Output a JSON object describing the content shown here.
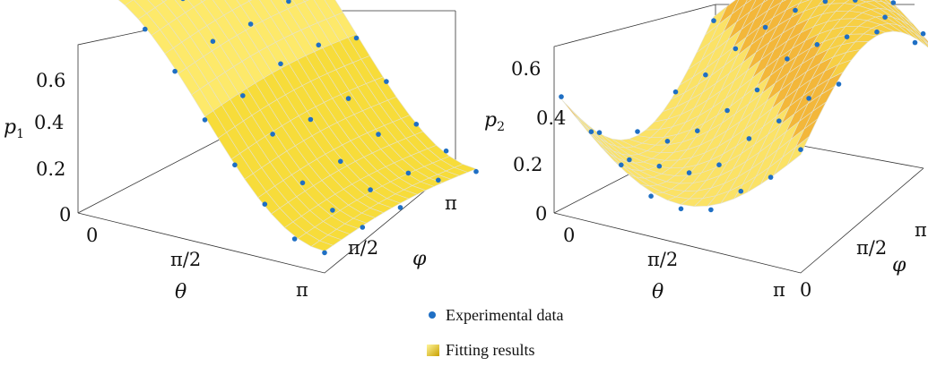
{
  "chart_data": [
    {
      "type": "surface",
      "zlabel": "p",
      "zlabel_sub": "1",
      "xlabel": "θ",
      "ylabel": "",
      "x_ticks": [
        "0",
        "π/2",
        "π"
      ],
      "y_ticks": [
        "",
        "π/2",
        "π"
      ],
      "z_ticks": [
        "0",
        "0.2",
        "0.4",
        "0.6"
      ],
      "zlim": [
        0,
        0.7
      ],
      "xlim": [
        0,
        3.1416
      ],
      "ylim": [
        0,
        3.1416
      ]
    },
    {
      "type": "surface",
      "zlabel": "p",
      "zlabel_sub": "2",
      "xlabel": "θ",
      "ylabel": "φ",
      "x_ticks": [
        "0",
        "π/2",
        "π"
      ],
      "y_ticks": [
        "0",
        "π/2",
        "π"
      ],
      "z_ticks": [
        "0",
        "0.2",
        "0.4",
        "0.6"
      ],
      "zlim": [
        0,
        0.7
      ],
      "xlim": [
        0,
        3.1416
      ],
      "ylim": [
        0,
        3.1416
      ]
    }
  ],
  "legend": {
    "experimental": "Experimental data",
    "fitting": "Fitting results"
  },
  "colors": {
    "points": "#1f6fc4",
    "surface_light": "#fff27a",
    "surface_mid": "#f7d72a",
    "surface_dark": "#e0a21a",
    "grid": "#d0d0d0"
  }
}
